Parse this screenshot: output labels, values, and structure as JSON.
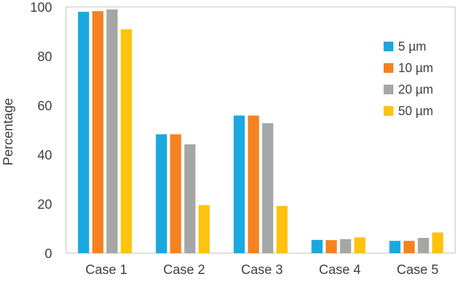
{
  "chart_data": {
    "type": "bar",
    "title": "",
    "xlabel": "",
    "ylabel": "Percentage",
    "ylim": [
      0,
      100
    ],
    "yticks": [
      0,
      20,
      40,
      60,
      80,
      100
    ],
    "grid": false,
    "legend_position": "top-right",
    "categories": [
      "Case 1",
      "Case 2",
      "Case 3",
      "Case 4",
      "Case 5"
    ],
    "series": [
      {
        "name": "5 µm",
        "color": "#1CA8DE",
        "values": [
          98.0,
          48.3,
          55.9,
          5.4,
          5.0
        ]
      },
      {
        "name": "10 µm",
        "color": "#F58220",
        "values": [
          98.3,
          48.3,
          55.9,
          5.3,
          5.0
        ]
      },
      {
        "name": "20 µm",
        "color": "#A6A6A6",
        "values": [
          99.0,
          44.2,
          52.8,
          5.7,
          6.2
        ]
      },
      {
        "name": "50 µm",
        "color": "#FFC20E",
        "values": [
          90.9,
          19.5,
          19.2,
          6.4,
          8.4
        ]
      }
    ]
  }
}
